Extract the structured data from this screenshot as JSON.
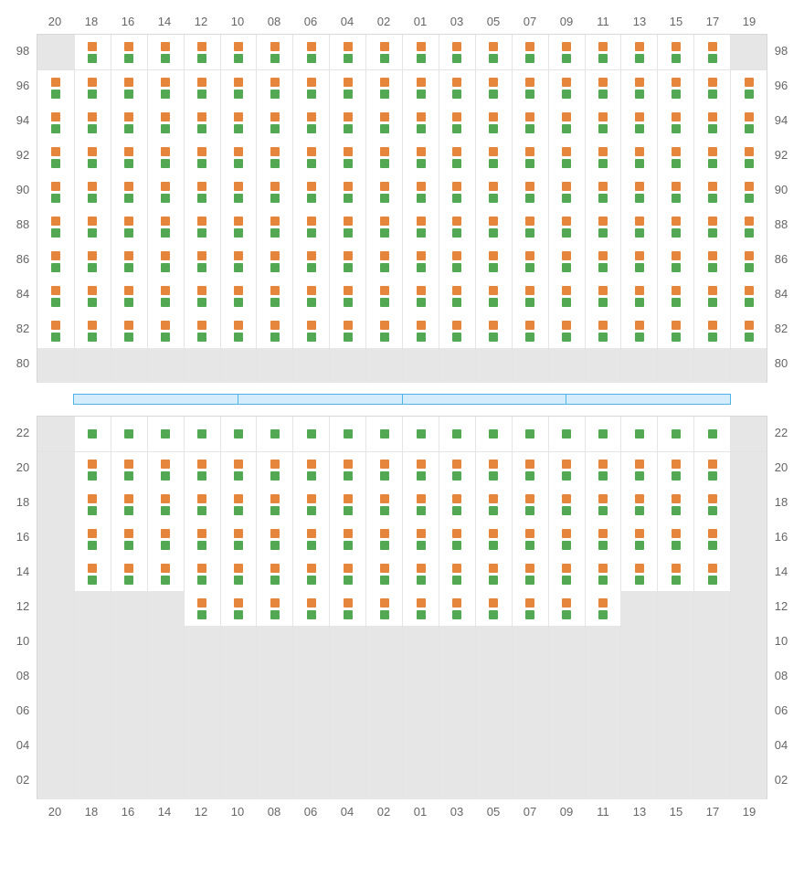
{
  "columns": [
    "20",
    "18",
    "16",
    "14",
    "12",
    "10",
    "08",
    "06",
    "04",
    "02",
    "01",
    "03",
    "05",
    "07",
    "09",
    "11",
    "13",
    "15",
    "17",
    "19"
  ],
  "colors": {
    "top_square": "#e6863c",
    "bottom_square": "#53a853",
    "empty_cell": "#e6e6e6",
    "active_cell": "#ffffff",
    "grid_border": "#d8d8d8",
    "cell_border": "#e4e4e4",
    "label_text": "#666666",
    "divider_border": "#4fb3e6",
    "divider_fill": "#d4ecfb"
  },
  "label_fontsize": 13,
  "upper": {
    "rows": [
      "98",
      "96",
      "94",
      "92",
      "90",
      "88",
      "86",
      "84",
      "82",
      "80"
    ],
    "cells": [
      [
        "empty",
        "both",
        "both",
        "both",
        "both",
        "both",
        "both",
        "both",
        "both",
        "both",
        "both",
        "both",
        "both",
        "both",
        "both",
        "both",
        "both",
        "both",
        "both",
        "empty"
      ],
      [
        "both",
        "both",
        "both",
        "both",
        "both",
        "both",
        "both",
        "both",
        "both",
        "both",
        "both",
        "both",
        "both",
        "both",
        "both",
        "both",
        "both",
        "both",
        "both",
        "both"
      ],
      [
        "both",
        "both",
        "both",
        "both",
        "both",
        "both",
        "both",
        "both",
        "both",
        "both",
        "both",
        "both",
        "both",
        "both",
        "both",
        "both",
        "both",
        "both",
        "both",
        "both"
      ],
      [
        "both",
        "both",
        "both",
        "both",
        "both",
        "both",
        "both",
        "both",
        "both",
        "both",
        "both",
        "both",
        "both",
        "both",
        "both",
        "both",
        "both",
        "both",
        "both",
        "both"
      ],
      [
        "both",
        "both",
        "both",
        "both",
        "both",
        "both",
        "both",
        "both",
        "both",
        "both",
        "both",
        "both",
        "both",
        "both",
        "both",
        "both",
        "both",
        "both",
        "both",
        "both"
      ],
      [
        "both",
        "both",
        "both",
        "both",
        "both",
        "both",
        "both",
        "both",
        "both",
        "both",
        "both",
        "both",
        "both",
        "both",
        "both",
        "both",
        "both",
        "both",
        "both",
        "both"
      ],
      [
        "both",
        "both",
        "both",
        "both",
        "both",
        "both",
        "both",
        "both",
        "both",
        "both",
        "both",
        "both",
        "both",
        "both",
        "both",
        "both",
        "both",
        "both",
        "both",
        "both"
      ],
      [
        "both",
        "both",
        "both",
        "both",
        "both",
        "both",
        "both",
        "both",
        "both",
        "both",
        "both",
        "both",
        "both",
        "both",
        "both",
        "both",
        "both",
        "both",
        "both",
        "both"
      ],
      [
        "both",
        "both",
        "both",
        "both",
        "both",
        "both",
        "both",
        "both",
        "both",
        "both",
        "both",
        "both",
        "both",
        "both",
        "both",
        "both",
        "both",
        "both",
        "both",
        "both"
      ],
      [
        "empty",
        "empty",
        "empty",
        "empty",
        "empty",
        "empty",
        "empty",
        "empty",
        "empty",
        "empty",
        "empty",
        "empty",
        "empty",
        "empty",
        "empty",
        "empty",
        "empty",
        "empty",
        "empty",
        "empty"
      ]
    ]
  },
  "divider_segments": 4,
  "lower": {
    "rows": [
      "22",
      "20",
      "18",
      "16",
      "14",
      "12",
      "10",
      "08",
      "06",
      "04",
      "02"
    ],
    "cells": [
      [
        "empty",
        "green",
        "green",
        "green",
        "green",
        "green",
        "green",
        "green",
        "green",
        "green",
        "green",
        "green",
        "green",
        "green",
        "green",
        "green",
        "green",
        "green",
        "green",
        "empty"
      ],
      [
        "empty",
        "both",
        "both",
        "both",
        "both",
        "both",
        "both",
        "both",
        "both",
        "both",
        "both",
        "both",
        "both",
        "both",
        "both",
        "both",
        "both",
        "both",
        "both",
        "empty"
      ],
      [
        "empty",
        "both",
        "both",
        "both",
        "both",
        "both",
        "both",
        "both",
        "both",
        "both",
        "both",
        "both",
        "both",
        "both",
        "both",
        "both",
        "both",
        "both",
        "both",
        "empty"
      ],
      [
        "empty",
        "both",
        "both",
        "both",
        "both",
        "both",
        "both",
        "both",
        "both",
        "both",
        "both",
        "both",
        "both",
        "both",
        "both",
        "both",
        "both",
        "both",
        "both",
        "empty"
      ],
      [
        "empty",
        "both",
        "both",
        "both",
        "both",
        "both",
        "both",
        "both",
        "both",
        "both",
        "both",
        "both",
        "both",
        "both",
        "both",
        "both",
        "both",
        "both",
        "both",
        "empty"
      ],
      [
        "empty",
        "empty",
        "empty",
        "empty",
        "both",
        "both",
        "both",
        "both",
        "both",
        "both",
        "both",
        "both",
        "both",
        "both",
        "both",
        "both",
        "empty",
        "empty",
        "empty",
        "empty"
      ],
      [
        "empty",
        "empty",
        "empty",
        "empty",
        "empty",
        "empty",
        "empty",
        "empty",
        "empty",
        "empty",
        "empty",
        "empty",
        "empty",
        "empty",
        "empty",
        "empty",
        "empty",
        "empty",
        "empty",
        "empty"
      ],
      [
        "empty",
        "empty",
        "empty",
        "empty",
        "empty",
        "empty",
        "empty",
        "empty",
        "empty",
        "empty",
        "empty",
        "empty",
        "empty",
        "empty",
        "empty",
        "empty",
        "empty",
        "empty",
        "empty",
        "empty"
      ],
      [
        "empty",
        "empty",
        "empty",
        "empty",
        "empty",
        "empty",
        "empty",
        "empty",
        "empty",
        "empty",
        "empty",
        "empty",
        "empty",
        "empty",
        "empty",
        "empty",
        "empty",
        "empty",
        "empty",
        "empty"
      ],
      [
        "empty",
        "empty",
        "empty",
        "empty",
        "empty",
        "empty",
        "empty",
        "empty",
        "empty",
        "empty",
        "empty",
        "empty",
        "empty",
        "empty",
        "empty",
        "empty",
        "empty",
        "empty",
        "empty",
        "empty"
      ],
      [
        "empty",
        "empty",
        "empty",
        "empty",
        "empty",
        "empty",
        "empty",
        "empty",
        "empty",
        "empty",
        "empty",
        "empty",
        "empty",
        "empty",
        "empty",
        "empty",
        "empty",
        "empty",
        "empty",
        "empty"
      ]
    ]
  }
}
